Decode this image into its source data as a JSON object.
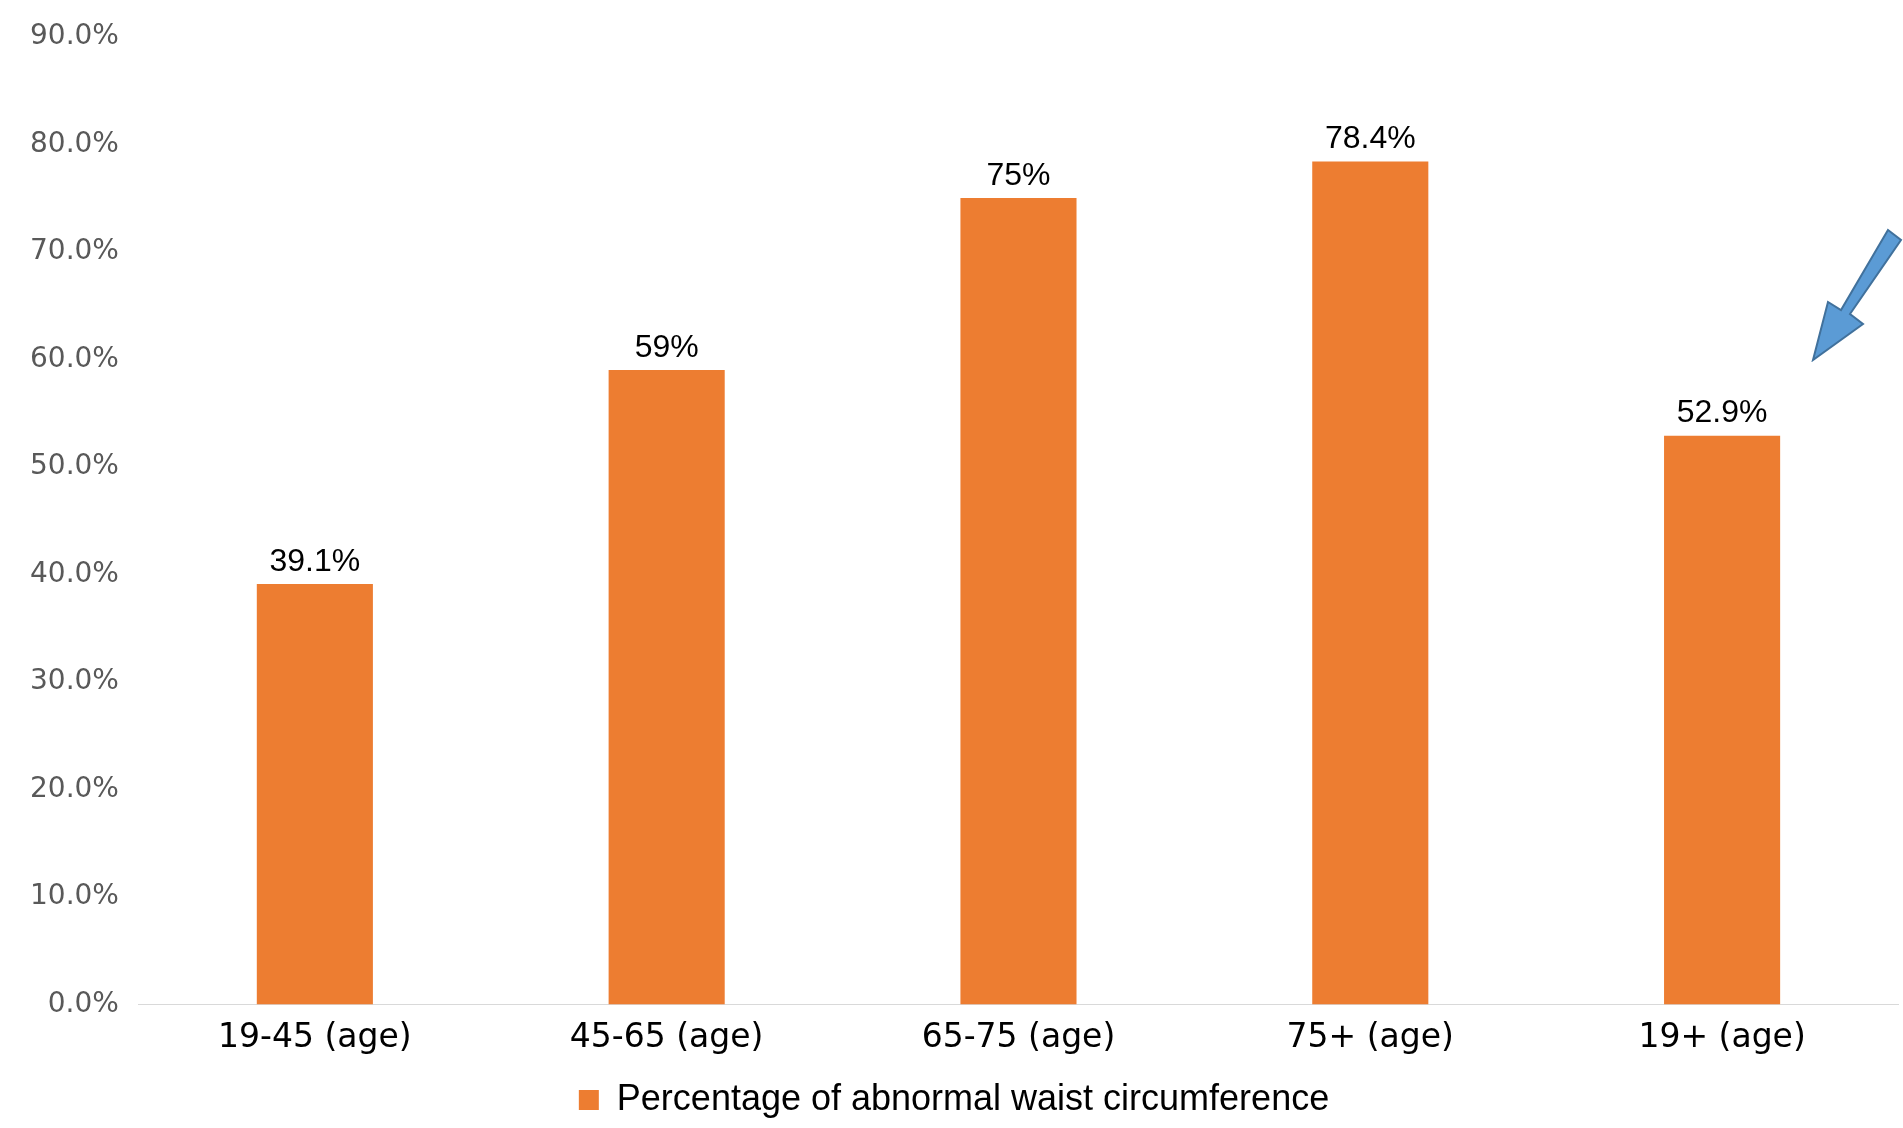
{
  "chart_data": {
    "type": "bar",
    "categories": [
      "19-45 (age)",
      "45-65 (age)",
      "65-75 (age)",
      "75+ (age)",
      "19+ (age)"
    ],
    "series": [
      {
        "name": "Percentage of abnormal waist circumference",
        "color": "#ed7d31",
        "values": [
          39.1,
          59,
          75,
          78.4,
          52.9
        ],
        "value_labels": [
          "39.1%",
          "59%",
          "75%",
          "78.4%",
          "52.9%"
        ]
      }
    ],
    "ylim": [
      0,
      90
    ],
    "yticks": [
      {
        "value": 0,
        "label": "0.0%"
      },
      {
        "value": 10,
        "label": "10.0%"
      },
      {
        "value": 20,
        "label": "20.0%"
      },
      {
        "value": 30,
        "label": "30.0%"
      },
      {
        "value": 40,
        "label": "40.0%"
      },
      {
        "value": 50,
        "label": "50.0%"
      },
      {
        "value": 60,
        "label": "60.0%"
      },
      {
        "value": 70,
        "label": "70.0%"
      },
      {
        "value": 80,
        "label": "80.0%"
      },
      {
        "value": 90,
        "label": "90.0%"
      }
    ],
    "legend": "bottom"
  }
}
